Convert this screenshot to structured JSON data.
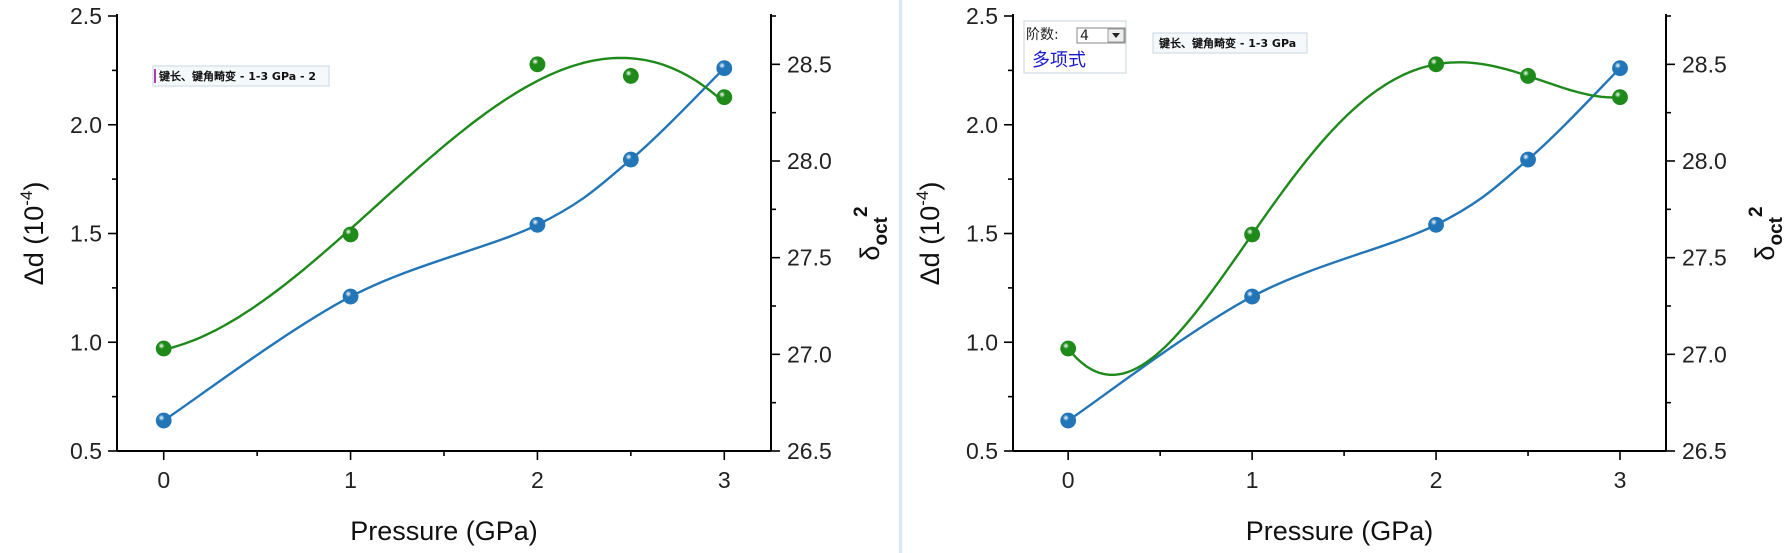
{
  "colors": {
    "series_a": "#2276b8",
    "series_b": "#1d8a1a",
    "divider": "#dbe6f3"
  },
  "chart_data": [
    {
      "type": "scatter",
      "legend_label": "键长、键角畸变 - 1-3 GPa - 2",
      "legend_placement": "top-left",
      "xlabel": "Pressure (GPa)",
      "ylabel_left": "Δd (10⁻⁴)",
      "ylabel_right": "δoct²",
      "xlim": [
        -0.25,
        3.25
      ],
      "ylim_left": [
        0.5,
        2.5
      ],
      "ylim_right": [
        26.5,
        28.75
      ],
      "x_ticks": [
        "0",
        "1",
        "2",
        "3"
      ],
      "y_ticks_left": [
        "0.5",
        "1.0",
        "1.5",
        "2.0",
        "2.5"
      ],
      "y_ticks_right": [
        "26.5",
        "27.0",
        "27.5",
        "28.0",
        "28.5"
      ],
      "grid": false,
      "series": [
        {
          "axis": "left",
          "color": "#2276b8",
          "fit": "spline",
          "x": [
            0,
            1,
            2,
            2.5,
            3
          ],
          "y": [
            0.64,
            1.21,
            1.54,
            1.84,
            2.26
          ]
        },
        {
          "axis": "right",
          "color": "#1d8a1a",
          "fit": "polynomial-3",
          "x": [
            0,
            1,
            2,
            2.5,
            3
          ],
          "y": [
            27.03,
            27.62,
            28.5,
            28.44,
            28.33
          ]
        }
      ]
    },
    {
      "type": "scatter",
      "legend_label": "键长、键角畸变 - 1-3 GPa",
      "legend_placement": "top-left",
      "xlabel": "Pressure (GPa)",
      "ylabel_left": "Δd (10⁻⁴)",
      "ylabel_right": "δoct²",
      "xlim": [
        -0.3,
        3.25
      ],
      "ylim_left": [
        0.5,
        2.5
      ],
      "ylim_right": [
        26.5,
        28.75
      ],
      "x_ticks": [
        "0",
        "1",
        "2",
        "3"
      ],
      "y_ticks_left": [
        "0.5",
        "1.0",
        "1.5",
        "2.0",
        "2.5"
      ],
      "y_ticks_right": [
        "26.5",
        "27.0",
        "27.5",
        "28.0",
        "28.5"
      ],
      "grid": false,
      "series": [
        {
          "axis": "left",
          "color": "#2276b8",
          "fit": "spline",
          "x": [
            0,
            1,
            2,
            2.5,
            3
          ],
          "y": [
            0.64,
            1.21,
            1.54,
            1.84,
            2.26
          ]
        },
        {
          "axis": "right",
          "color": "#1d8a1a",
          "fit": "polynomial-4",
          "x": [
            0,
            1,
            2,
            2.5,
            3
          ],
          "y": [
            27.03,
            27.62,
            28.5,
            28.44,
            28.33
          ]
        }
      ],
      "controls": {
        "order_label": "阶数:",
        "order_value": "4",
        "fit_button_label": "多项式"
      }
    }
  ]
}
